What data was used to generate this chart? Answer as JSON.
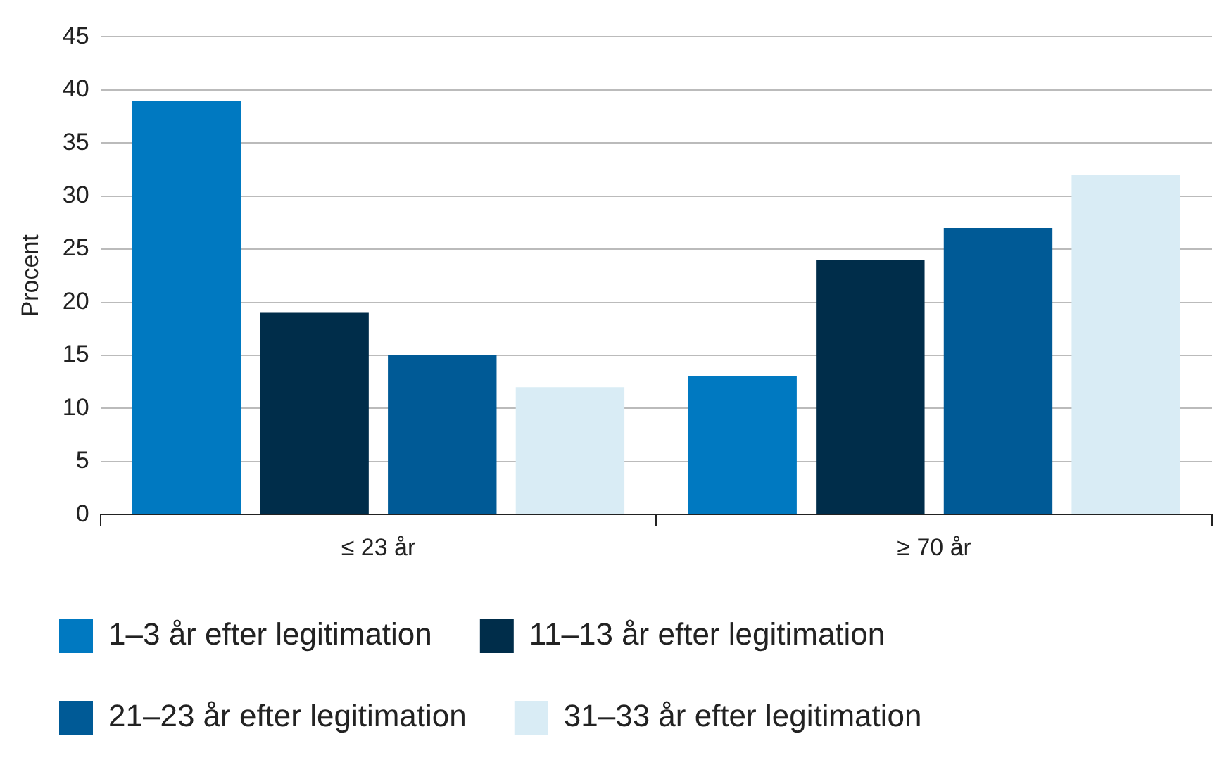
{
  "chart_data": {
    "type": "bar",
    "ylabel": "Procent",
    "categories": [
      "≤ 23 år",
      "≥ 70 år"
    ],
    "series": [
      {
        "name": "1–3 år efter legitimation",
        "color": "#0079c1",
        "values": [
          39,
          13
        ]
      },
      {
        "name": "11–13 år efter legitimation",
        "color": "#002d4a",
        "values": [
          19,
          24
        ]
      },
      {
        "name": "21–23 år efter legitimation",
        "color": "#005a96",
        "values": [
          15,
          27
        ]
      },
      {
        "name": "31–33 år efter legitimation",
        "color": "#d9ecf5",
        "values": [
          12,
          32
        ]
      }
    ],
    "ylim": [
      0,
      45
    ],
    "yticks": [
      0,
      5,
      10,
      15,
      20,
      25,
      30,
      35,
      40,
      45
    ],
    "grid": "y",
    "legend": "bottom"
  }
}
